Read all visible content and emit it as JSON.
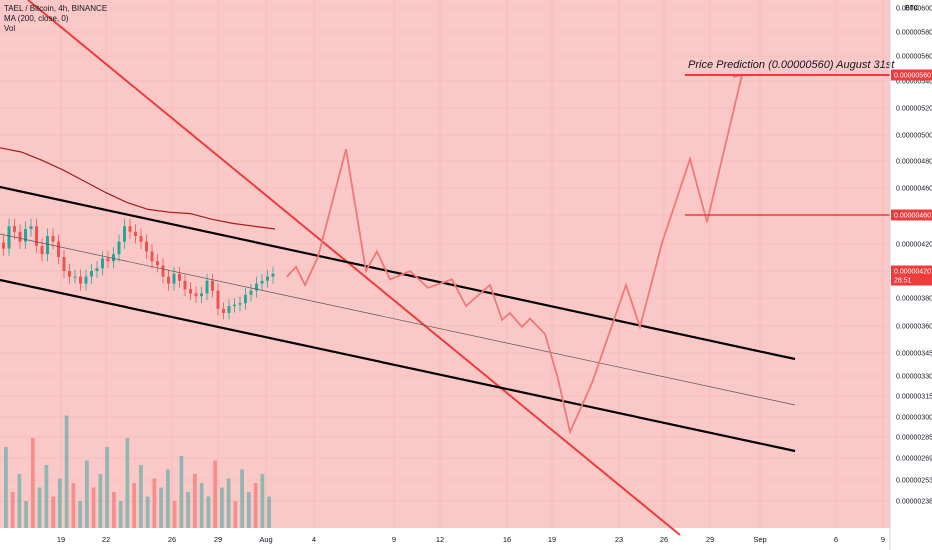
{
  "legend": {
    "symbol": "TAEL / Bitcoin, 4h, BINANCE",
    "ma": "MA (200, close, 0)",
    "vol": "Vol"
  },
  "currency": "BTC",
  "annotation": "Price Prediction (0.00000560) August 31st",
  "colors": {
    "background": "#fbc8c8",
    "axis_bg": "#ffffff",
    "grid": "#f2b3b3",
    "trend_red": "#ef3b3b",
    "ma": "#a01d1d",
    "channel": "#000000",
    "projection": "#ef7878",
    "candle_up": "#26a69a",
    "candle_down": "#ef5350",
    "label_red": "#ef3b3b",
    "label_text": "#ffffff"
  },
  "price_axis": {
    "ticks": [
      "0.00000600",
      "0.00000580",
      "0.00000560",
      "0.00000540",
      "0.00000520",
      "0.00000500",
      "0.00000480",
      "0.00000460",
      "0.00000440",
      "0.00000420",
      "0.00000400",
      "0.00000380",
      "0.00000360",
      "0.00000345",
      "0.00000330",
      "0.00000315",
      "0.00000300",
      "0.00000285",
      "0.00000269",
      "0.00000253",
      "0.00000238"
    ],
    "labels": [
      {
        "text": "0.00000560",
        "lines": [
          "0.00000560"
        ]
      },
      {
        "text": "0.00000460",
        "lines": [
          "0.00000460"
        ]
      },
      {
        "text": "0.00000420",
        "lines": [
          "0.00000420",
          "28:51"
        ]
      }
    ]
  },
  "time_axis": {
    "ticks": [
      "19",
      "22",
      "26",
      "29",
      "Aug",
      "4",
      "9",
      "12",
      "16",
      "19",
      "23",
      "26",
      "29",
      "Sep",
      "6",
      "9"
    ]
  },
  "chart_data": {
    "type": "candlestick",
    "title": "TAEL / Bitcoin, 4h, BINANCE",
    "y_unit": "BTC",
    "x_ticks": [
      "19",
      "22",
      "26",
      "29",
      "Aug",
      "4",
      "9",
      "12",
      "16",
      "19",
      "23",
      "26",
      "29",
      "Sep",
      "6",
      "9"
    ],
    "y_ticks": [
      6e-06,
      5.8e-06,
      5.6e-06,
      5.4e-06,
      5.2e-06,
      5e-06,
      4.8e-06,
      4.6e-06,
      4.4e-06,
      4.2e-06,
      4e-06,
      3.8e-06,
      3.6e-06,
      3.45e-06,
      3.3e-06,
      3.15e-06,
      3e-06,
      2.85e-06,
      2.69e-06,
      2.53e-06,
      2.38e-06
    ],
    "close_series": [
      4.36e-06,
      4.52e-06,
      4.48e-06,
      4.41e-06,
      4.5e-06,
      4.52e-06,
      4.38e-06,
      4.32e-06,
      4.45e-06,
      4.41e-06,
      4.3e-06,
      4.2e-06,
      4.16e-06,
      4.16e-06,
      4.11e-06,
      4.16e-06,
      4.2e-06,
      4.22e-06,
      4.29e-06,
      4.27e-06,
      4.32e-06,
      4.41e-06,
      4.52e-06,
      4.48e-06,
      4.45e-06,
      4.41e-06,
      4.34e-06,
      4.27e-06,
      4.24e-06,
      4.16e-06,
      4.11e-06,
      4.18e-06,
      4.13e-06,
      4.07e-06,
      4.04e-06,
      4.02e-06,
      4.04e-06,
      4.13e-06,
      4.06e-06,
      3.93e-06,
      3.9e-06,
      3.95e-06,
      3.96e-06,
      3.97e-06,
      4.03e-06,
      4.06e-06,
      4.11e-06,
      4.13e-06,
      4.16e-06,
      4.18e-06
    ],
    "ma_200": [
      5.08e-06,
      5.05e-06,
      4.99e-06,
      4.92e-06,
      4.84e-06,
      4.76e-06,
      4.69e-06,
      4.64e-06,
      4.62e-06,
      4.61e-06,
      4.57e-06,
      4.54e-06,
      4.52e-06,
      4.5e-06
    ],
    "projection": [
      4.16e-06,
      4.23e-06,
      4.1e-06,
      4.3e-06,
      5.07e-06,
      4.2e-06,
      4.34e-06,
      4.14e-06,
      4.2e-06,
      4.08e-06,
      4.14e-06,
      3.95e-06,
      4.1e-06,
      3.85e-06,
      3.9e-06,
      3.8e-06,
      3.86e-06,
      3.75e-06,
      3.43e-06,
      3.05e-06,
      3.4e-06,
      4.1e-06,
      3.8e-06,
      4.4e-06,
      5e-06,
      4.55e-06,
      5.6e-06
    ],
    "levels": [
      5.6e-06,
      4.6e-06,
      4.2e-06
    ],
    "volume": [
      18,
      8,
      12,
      6,
      20,
      9,
      14,
      7,
      11,
      25,
      10,
      6,
      15,
      9,
      12,
      18,
      8,
      6,
      20,
      10,
      14,
      7,
      11,
      9,
      13,
      6,
      16,
      8,
      12,
      10,
      7,
      15,
      9,
      11,
      6,
      13,
      8,
      10,
      12,
      7
    ]
  }
}
